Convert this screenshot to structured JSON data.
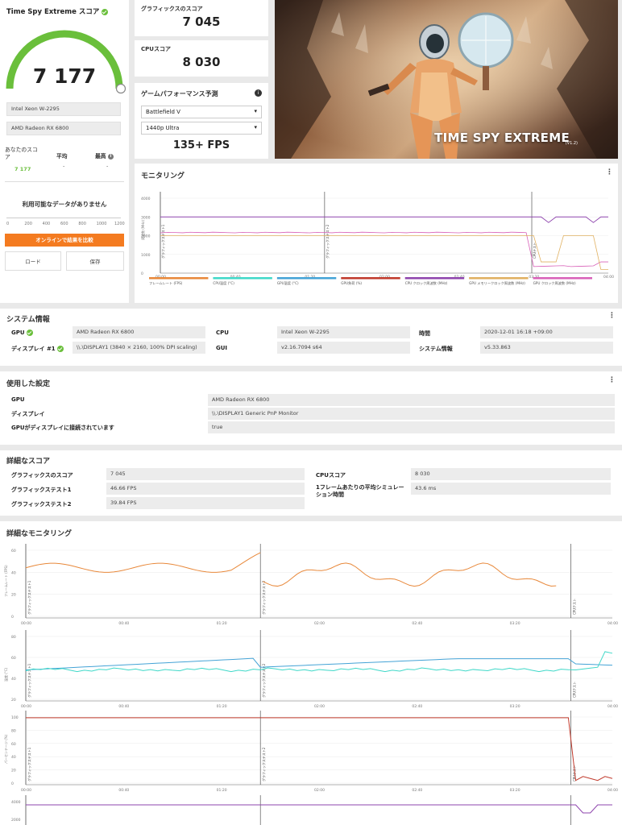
{
  "score_card": {
    "title": "Time Spy Extreme スコア",
    "score": "7 177",
    "cpu_name": "Intel Xeon W-2295",
    "gpu_name": "AMD Radeon RX 6800",
    "compare": {
      "yours_label": "あなたのスコア",
      "yours_value": "7 177",
      "avg_label": "平均",
      "avg_value": "-",
      "best_label": "最高",
      "best_value": "-"
    },
    "no_data": "利用可能なデータがありません",
    "axis_ticks": [
      "0",
      "200",
      "400",
      "600",
      "800",
      "1000",
      "1200"
    ],
    "online_button": "オンラインで結果を比較",
    "load_button": "ロード",
    "save_button": "保存",
    "accent_color": "#f47b20",
    "green": "#6abf3b"
  },
  "graphics_score": {
    "label": "グラフィックスのスコア",
    "value": "7 045"
  },
  "cpu_score": {
    "label": "CPUスコア",
    "value": "8 030"
  },
  "game_perf": {
    "title": "ゲームパフォーマンス予測",
    "game": "Battlefield V",
    "resolution": "1440p Ultra",
    "fps": "135+ FPS"
  },
  "hero": {
    "title": "TIME SPY EXTREME",
    "version": "(V1.2)"
  },
  "monitoring": {
    "title": "モニタリング",
    "y_ticks": [
      "4000",
      "3000",
      "2000",
      "1000",
      "0"
    ],
    "x_ticks": [
      "00:00",
      "00:40",
      "01:20",
      "02:00",
      "02:40",
      "03:20",
      "04:00"
    ],
    "markers": [
      "グラフィックステスト1",
      "グラフィックステスト2",
      "CPUテスト"
    ],
    "y_axis_label": "周波数 (MHz)",
    "legend": [
      {
        "label": "フレームレート (FPS)",
        "color": "#e8883a"
      },
      {
        "label": "CPU温度 (°C)",
        "color": "#3fd8c8"
      },
      {
        "label": "GPU温度 (°C)",
        "color": "#44a3d6"
      },
      {
        "label": "GPU負荷 (%)",
        "color": "#c0392b"
      },
      {
        "label": "CPU クロック周波数 (MHz)",
        "color": "#8e44ad"
      },
      {
        "label": "GPU メモリークロック周波数 (MHz)",
        "color": "#e0b060"
      },
      {
        "label": "GPU クロック周波数 (MHz)",
        "color": "#d860b8"
      }
    ]
  },
  "system_info": {
    "title": "システム情報",
    "gpu_label": "GPU",
    "gpu_value": "AMD Radeon RX 6800",
    "display_label": "ディスプレイ #1",
    "display_value": "\\\\.\\DISPLAY1 (3840 × 2160, 100% DPI scaling)",
    "cpu_label": "CPU",
    "cpu_value": "Intel Xeon W-2295",
    "gui_label": "GUI",
    "gui_value": "v2.16.7094 s64",
    "time_label": "時間",
    "time_value": "2020-12-01 16:18 +09:00",
    "sysinfo_label": "システム情報",
    "sysinfo_value": "v5.33.863"
  },
  "settings": {
    "title": "使用した設定",
    "rows": [
      {
        "label": "GPU",
        "value": "AMD Radeon RX 6800"
      },
      {
        "label": "ディスプレイ",
        "value": "\\\\.\\DISPLAY1 Generic PnP Monitor"
      },
      {
        "label": "GPUがディスプレイに接続されています",
        "value": "true"
      }
    ]
  },
  "detailed_scores": {
    "title": "詳細なスコア",
    "graphics_score_label": "グラフィックスのスコア",
    "graphics_score_value": "7 045",
    "gt1_label": "グラフィックステスト1",
    "gt1_value": "46.66 FPS",
    "gt2_label": "グラフィックステスト2",
    "gt2_value": "39.84 FPS",
    "cpu_score_label": "CPUスコア",
    "cpu_score_value": "8 030",
    "cpu_sim_label": "1フレームあたりの平均シミュレーション時間",
    "cpu_sim_value": "43.6 ms"
  },
  "detailed_monitoring": {
    "title": "詳細なモニタリング",
    "x_ticks": [
      "00:00",
      "00:40",
      "01:20",
      "02:00",
      "02:40",
      "03:20",
      "04:00"
    ],
    "fps_y_ticks": [
      "60",
      "40",
      "20",
      "0"
    ],
    "fps_y_label": "フレームレート (FPS)",
    "temp_y_ticks": [
      "80",
      "60",
      "40",
      "20"
    ],
    "temp_y_label": "温度 (°C)",
    "load_y_ticks": [
      "100",
      "80",
      "60",
      "40",
      "20",
      "0"
    ],
    "load_y_label": "パーセンテージ (%)",
    "clock_y_ticks": [
      "4000",
      "2000"
    ],
    "markers": [
      "グラフィックステスト1",
      "グラフィックステスト2",
      "CPUテスト"
    ]
  }
}
